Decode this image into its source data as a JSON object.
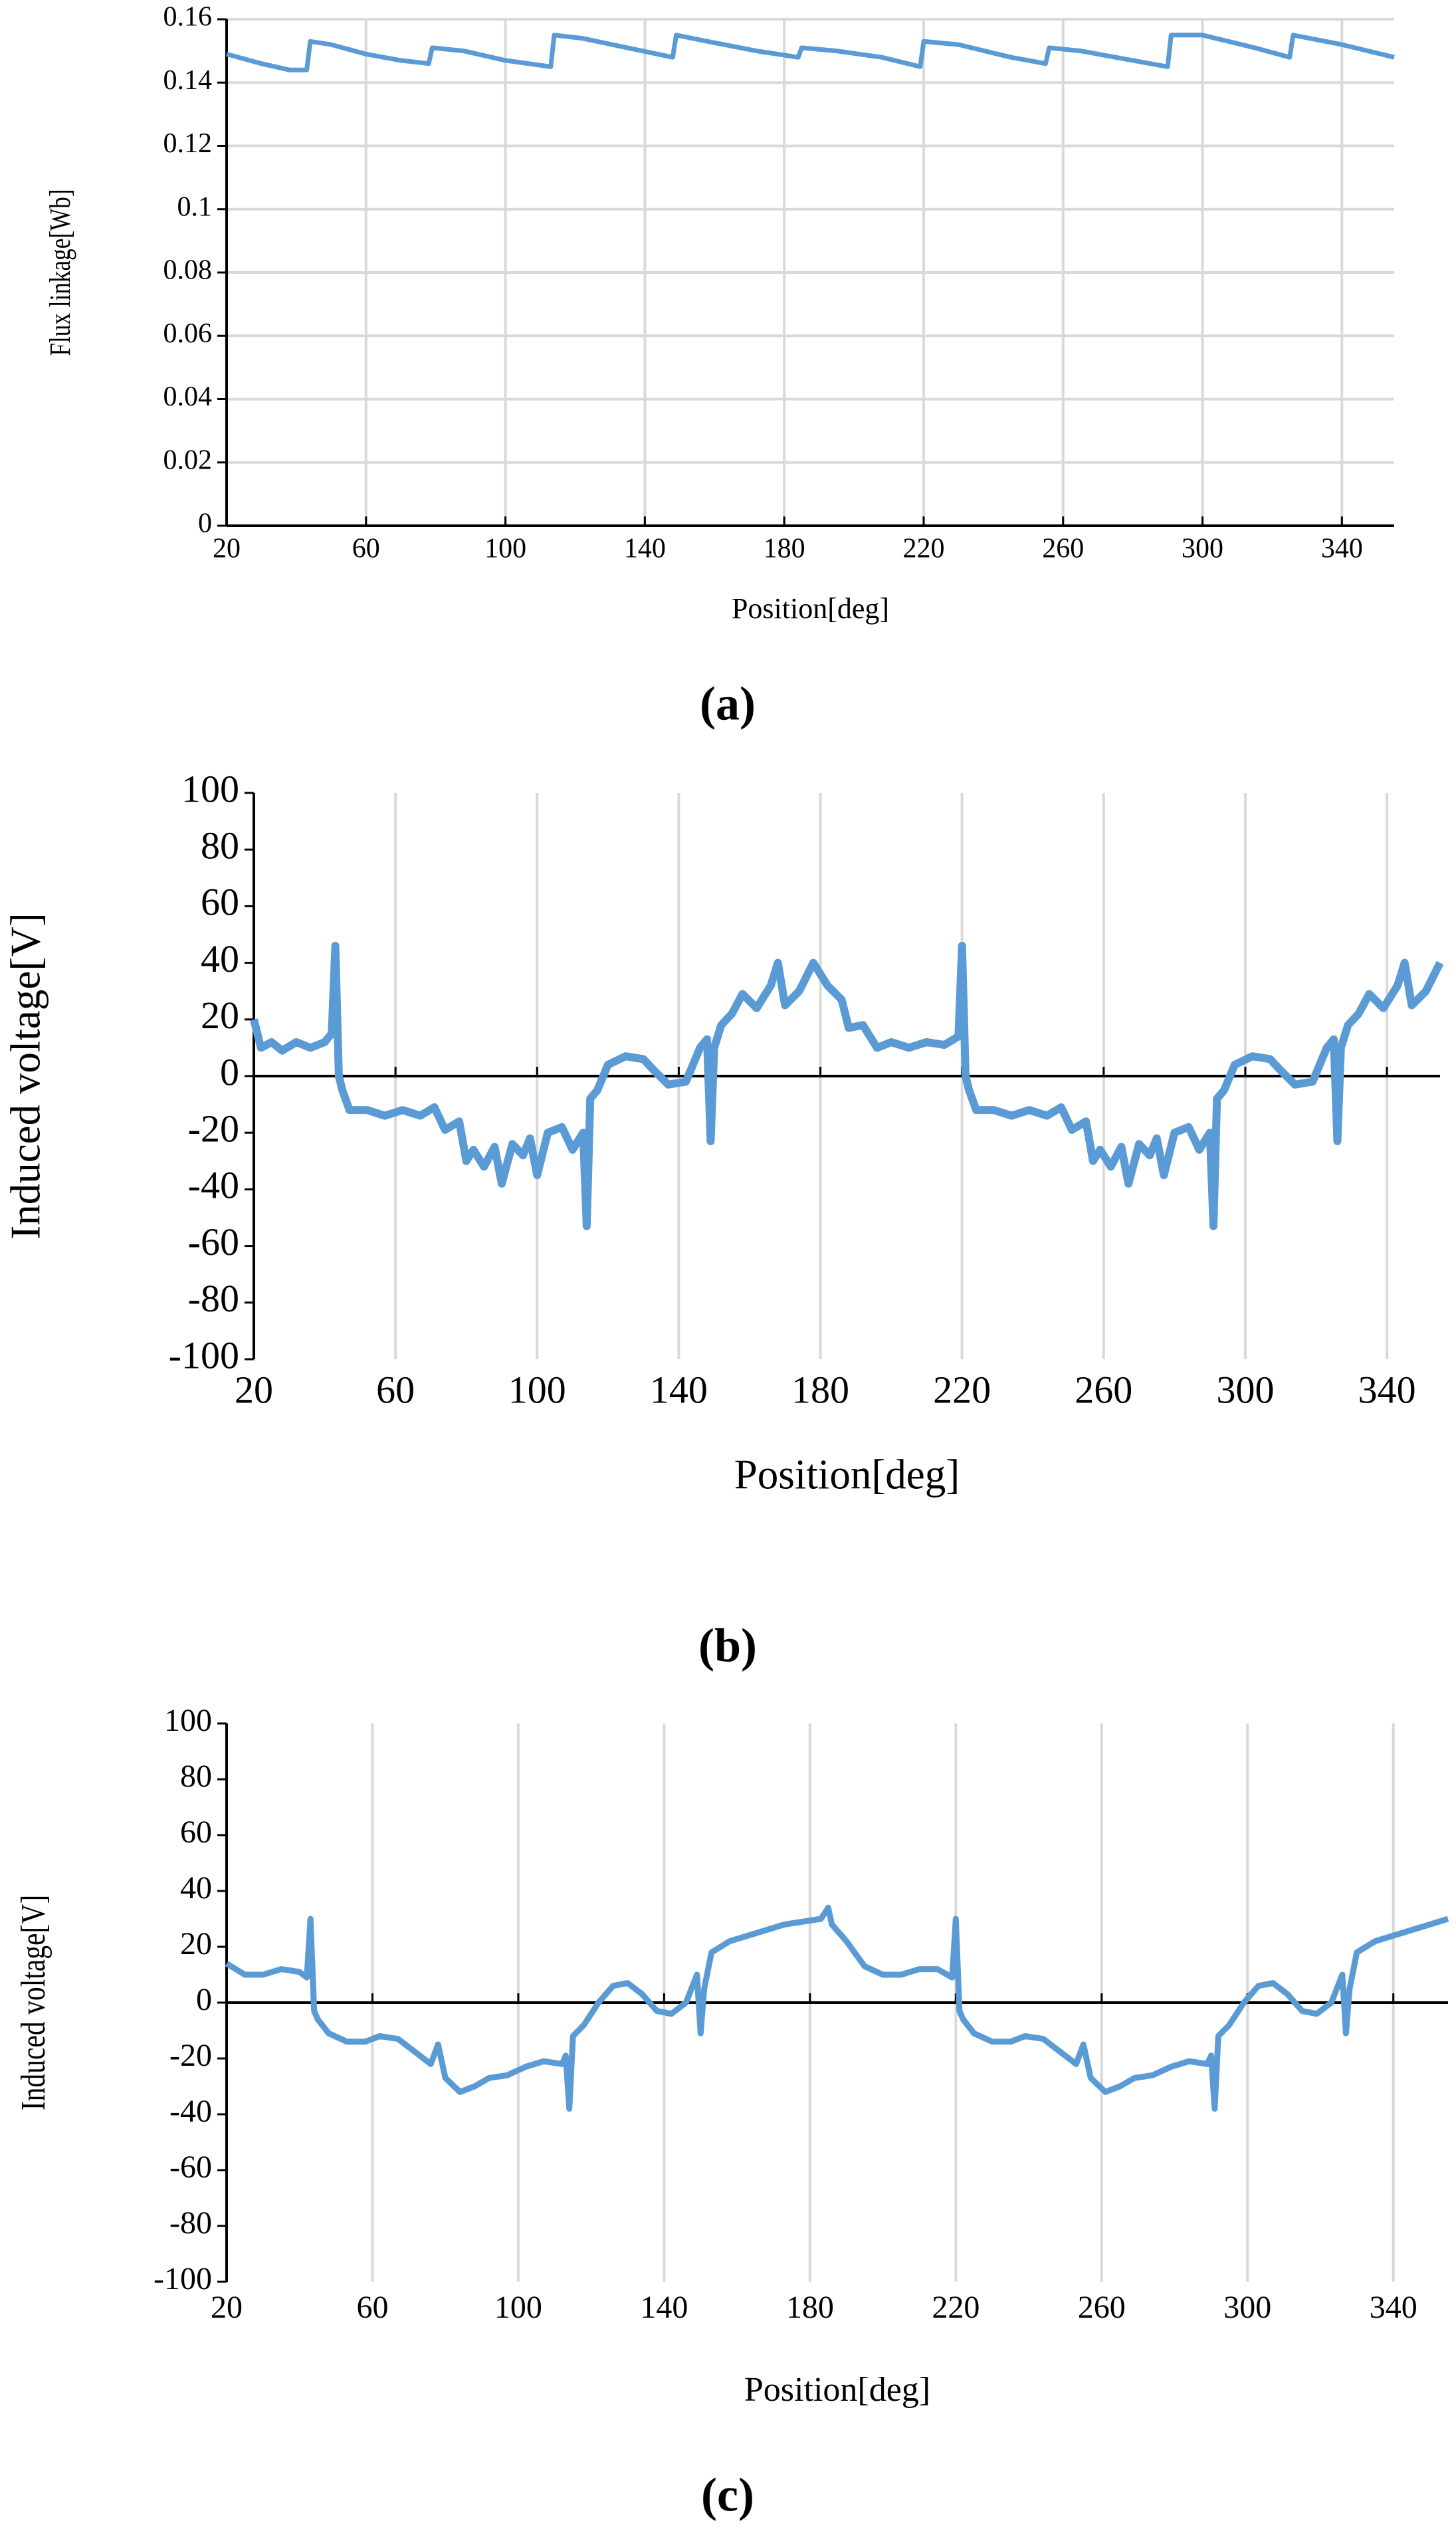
{
  "chart_data": [
    {
      "type": "line",
      "caption": "(a)",
      "x_label": "Position[deg]",
      "y_label": "Flux linkage[Wb]",
      "color": "#5b9bd5",
      "grid": "both",
      "xlim": [
        20,
        355
      ],
      "xticks": [
        20,
        60,
        100,
        140,
        180,
        220,
        260,
        300,
        340
      ],
      "ylim": [
        0,
        0.16
      ],
      "yticks": [
        0,
        0.02,
        0.04,
        0.06,
        0.08,
        0.1,
        0.12,
        0.14,
        0.16
      ],
      "x": [
        20,
        30,
        38,
        43,
        44,
        50,
        60,
        70,
        78,
        79,
        88,
        100,
        113,
        114,
        122,
        135,
        148,
        149,
        158,
        172,
        184,
        185,
        195,
        208,
        219,
        220,
        230,
        245,
        255,
        256,
        265,
        280,
        290,
        291,
        300,
        315,
        325,
        326,
        340,
        355
      ],
      "values": [
        0.149,
        0.146,
        0.144,
        0.144,
        0.153,
        0.152,
        0.149,
        0.147,
        0.146,
        0.151,
        0.15,
        0.147,
        0.145,
        0.155,
        0.154,
        0.151,
        0.148,
        0.155,
        0.153,
        0.15,
        0.148,
        0.151,
        0.15,
        0.148,
        0.145,
        0.153,
        0.152,
        0.148,
        0.146,
        0.151,
        0.15,
        0.147,
        0.145,
        0.155,
        0.155,
        0.151,
        0.148,
        0.155,
        0.152,
        0.148
      ]
    },
    {
      "type": "line",
      "caption": "(b)",
      "x_label": "Position[deg]",
      "y_label": "Induced voltage[V]",
      "color": "#5b9bd5",
      "grid": "x",
      "xlim": [
        20,
        355
      ],
      "xticks": [
        20,
        60,
        100,
        140,
        180,
        220,
        260,
        300,
        340
      ],
      "ylim": [
        -100,
        100
      ],
      "yticks": [
        -100,
        -80,
        -60,
        -40,
        -20,
        0,
        20,
        40,
        60,
        80,
        100
      ],
      "x": [
        20,
        22,
        25,
        28,
        32,
        36,
        40,
        42,
        43,
        44,
        45,
        47,
        52,
        57,
        62,
        67,
        71,
        74,
        78,
        80,
        82,
        85,
        88,
        90,
        93,
        96,
        98,
        100,
        103,
        107,
        110,
        113,
        114,
        115,
        117,
        120,
        125,
        130,
        133,
        137,
        142,
        146,
        148,
        149,
        150,
        152,
        155,
        158,
        162,
        166,
        168,
        170,
        174,
        178,
        182,
        186,
        188,
        192,
        196,
        200,
        205,
        210,
        215,
        219,
        220,
        221,
        222,
        224,
        229,
        234,
        239,
        244,
        248,
        251,
        255,
        257,
        259,
        262,
        265,
        267,
        270,
        273,
        275,
        277,
        280,
        284,
        287,
        290,
        291,
        292,
        294,
        297,
        302,
        307,
        310,
        314,
        319,
        323,
        325,
        326,
        327,
        329,
        332,
        335,
        339,
        343,
        345,
        347,
        351,
        355
      ],
      "values": [
        20,
        10,
        12,
        9,
        12,
        10,
        12,
        15,
        46,
        0,
        -5,
        -12,
        -12,
        -14,
        -12,
        -14,
        -11,
        -19,
        -16,
        -30,
        -26,
        -32,
        -25,
        -38,
        -24,
        -28,
        -22,
        -35,
        -20,
        -18,
        -26,
        -20,
        -53,
        -8,
        -5,
        4,
        7,
        6,
        2,
        -3,
        -2,
        10,
        13,
        -23,
        10,
        18,
        22,
        29,
        24,
        32,
        40,
        25,
        30,
        40,
        32,
        27,
        17,
        18,
        10,
        12,
        10,
        12,
        11,
        14,
        46,
        0,
        -5,
        -12,
        -12,
        -14,
        -12,
        -14,
        -11,
        -19,
        -16,
        -30,
        -26,
        -32,
        -25,
        -38,
        -24,
        -28,
        -22,
        -35,
        -20,
        -18,
        -26,
        -20,
        -53,
        -8,
        -5,
        4,
        7,
        6,
        2,
        -3,
        -2,
        10,
        13,
        -23,
        10,
        18,
        22,
        29,
        24,
        32,
        40,
        25,
        30,
        40
      ]
    },
    {
      "type": "line",
      "caption": "(c)",
      "x_label": "Position[deg]",
      "y_label": "Induced voltage[V]",
      "color": "#5b9bd5",
      "grid": "x",
      "xlim": [
        20,
        355
      ],
      "xticks": [
        20,
        60,
        100,
        140,
        180,
        220,
        260,
        300,
        340
      ],
      "ylim": [
        -100,
        100
      ],
      "yticks": [
        -100,
        -80,
        -60,
        -40,
        -20,
        0,
        20,
        40,
        60,
        80,
        100
      ],
      "x": [
        20,
        25,
        30,
        35,
        40,
        42,
        43,
        44,
        45,
        48,
        53,
        58,
        62,
        67,
        72,
        76,
        78,
        80,
        84,
        88,
        92,
        97,
        102,
        107,
        112,
        113,
        114,
        115,
        118,
        122,
        126,
        130,
        134,
        138,
        142,
        146,
        149,
        150,
        151,
        153,
        158,
        163,
        168,
        173,
        178,
        183,
        185,
        186,
        190,
        195,
        200,
        205,
        210,
        215,
        219,
        220,
        221,
        222,
        225,
        230,
        235,
        239,
        244,
        249,
        253,
        255,
        257,
        261,
        265,
        269,
        274,
        279,
        284,
        289,
        290,
        291,
        292,
        295,
        299,
        303,
        307,
        311,
        315,
        319,
        323,
        326,
        327,
        328,
        330,
        335,
        340,
        345,
        350,
        355
      ],
      "values": [
        14,
        10,
        10,
        12,
        11,
        9,
        30,
        -3,
        -6,
        -11,
        -14,
        -14,
        -12,
        -13,
        -18,
        -22,
        -15,
        -27,
        -32,
        -30,
        -27,
        -26,
        -23,
        -21,
        -22,
        -19,
        -38,
        -12,
        -8,
        0,
        6,
        7,
        3,
        -3,
        -4,
        0,
        10,
        -11,
        5,
        18,
        22,
        24,
        26,
        28,
        29,
        30,
        34,
        28,
        22,
        13,
        10,
        10,
        12,
        12,
        9,
        30,
        -3,
        -6,
        -11,
        -14,
        -14,
        -12,
        -13,
        -18,
        -22,
        -15,
        -27,
        -32,
        -30,
        -27,
        -26,
        -23,
        -21,
        -22,
        -19,
        -38,
        -12,
        -8,
        0,
        6,
        7,
        3,
        -3,
        -4,
        0,
        10,
        -11,
        5,
        18,
        22,
        24,
        26,
        28,
        30
      ]
    }
  ]
}
